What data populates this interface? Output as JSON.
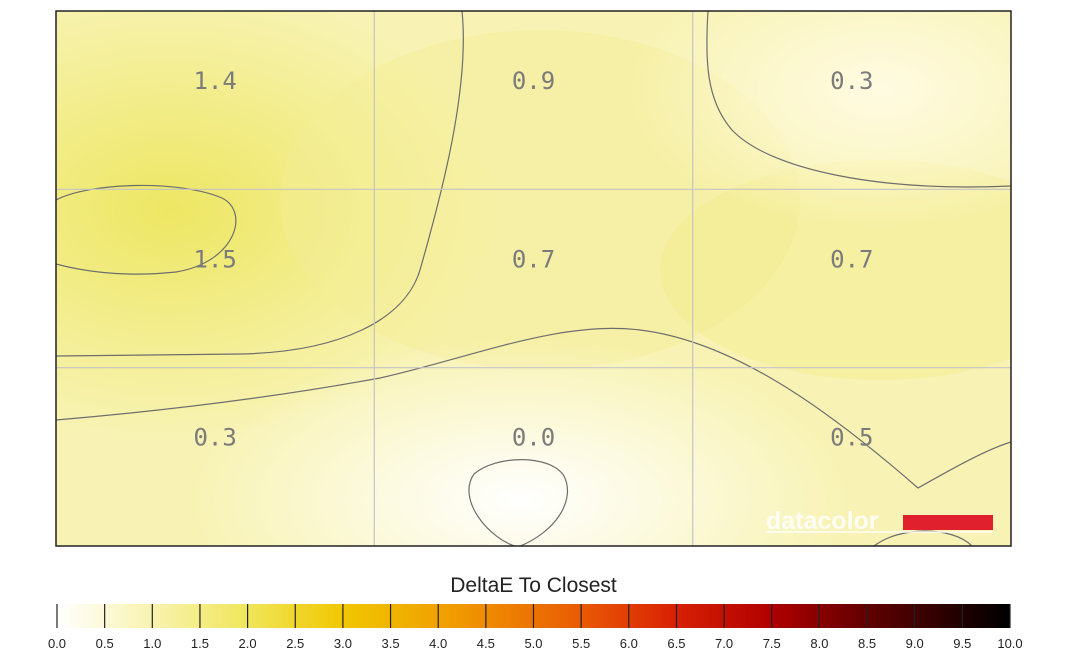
{
  "chart_data": {
    "type": "heatmap",
    "title": "",
    "colorbar_label": "DeltaE To Closest",
    "grid_rows": 3,
    "grid_cols": 3,
    "values": [
      [
        1.4,
        0.9,
        0.3
      ],
      [
        1.5,
        0.7,
        0.7
      ],
      [
        0.3,
        0.0,
        0.5
      ]
    ],
    "value_labels": [
      [
        "1.4",
        "0.9",
        "0.3"
      ],
      [
        "1.5",
        "0.7",
        "0.7"
      ],
      [
        "0.3",
        "0.0",
        "0.5"
      ]
    ],
    "colorbar_range": [
      0.0,
      10.0
    ],
    "colorbar_ticks": [
      "0.0",
      "0.5",
      "1.0",
      "1.5",
      "2.0",
      "2.5",
      "3.0",
      "3.5",
      "4.0",
      "4.5",
      "5.0",
      "5.5",
      "6.0",
      "6.5",
      "7.0",
      "7.5",
      "8.0",
      "8.5",
      "9.0",
      "9.5",
      "10.0"
    ],
    "colorscale": [
      "#ffffff",
      "#fff7c0",
      "#f4ec5c",
      "#f0cc00",
      "#f08a00",
      "#e84a00",
      "#cc0a00",
      "#7a0000",
      "#3a0000",
      "#000000"
    ],
    "contours": true
  },
  "watermark": {
    "text": "datacolor",
    "accent": "#e0202c"
  }
}
